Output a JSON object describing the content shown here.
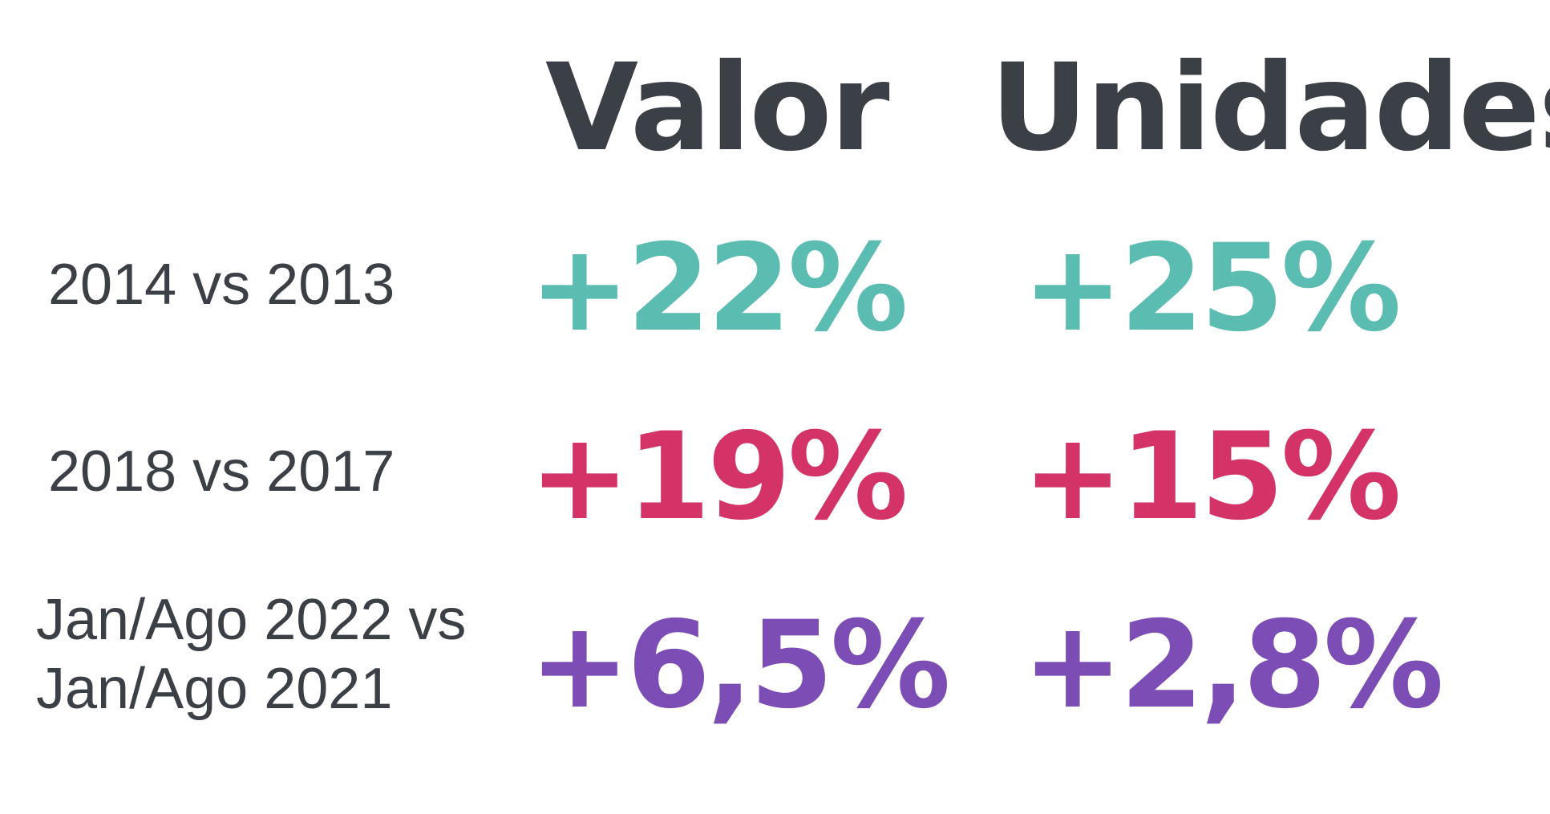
{
  "colors": {
    "text_dark": "#3b4046",
    "teal": "#5bbcb2",
    "crimson": "#d33366",
    "purple": "#7b4db5"
  },
  "headers": {
    "valor": "Valor",
    "unidades": "Unidades"
  },
  "rows": [
    {
      "label_line1": "2014 vs 2013",
      "label_line2": "",
      "valor": "+22%",
      "unidades": "+25%"
    },
    {
      "label_line1": "2018 vs 2017",
      "label_line2": "",
      "valor": "+19%",
      "unidades": "+15%"
    },
    {
      "label_line1": "Jan/Ago 2022 vs",
      "label_line2": "Jan/Ago 2021",
      "valor": "+6,5%",
      "unidades": "+2,8%"
    }
  ]
}
